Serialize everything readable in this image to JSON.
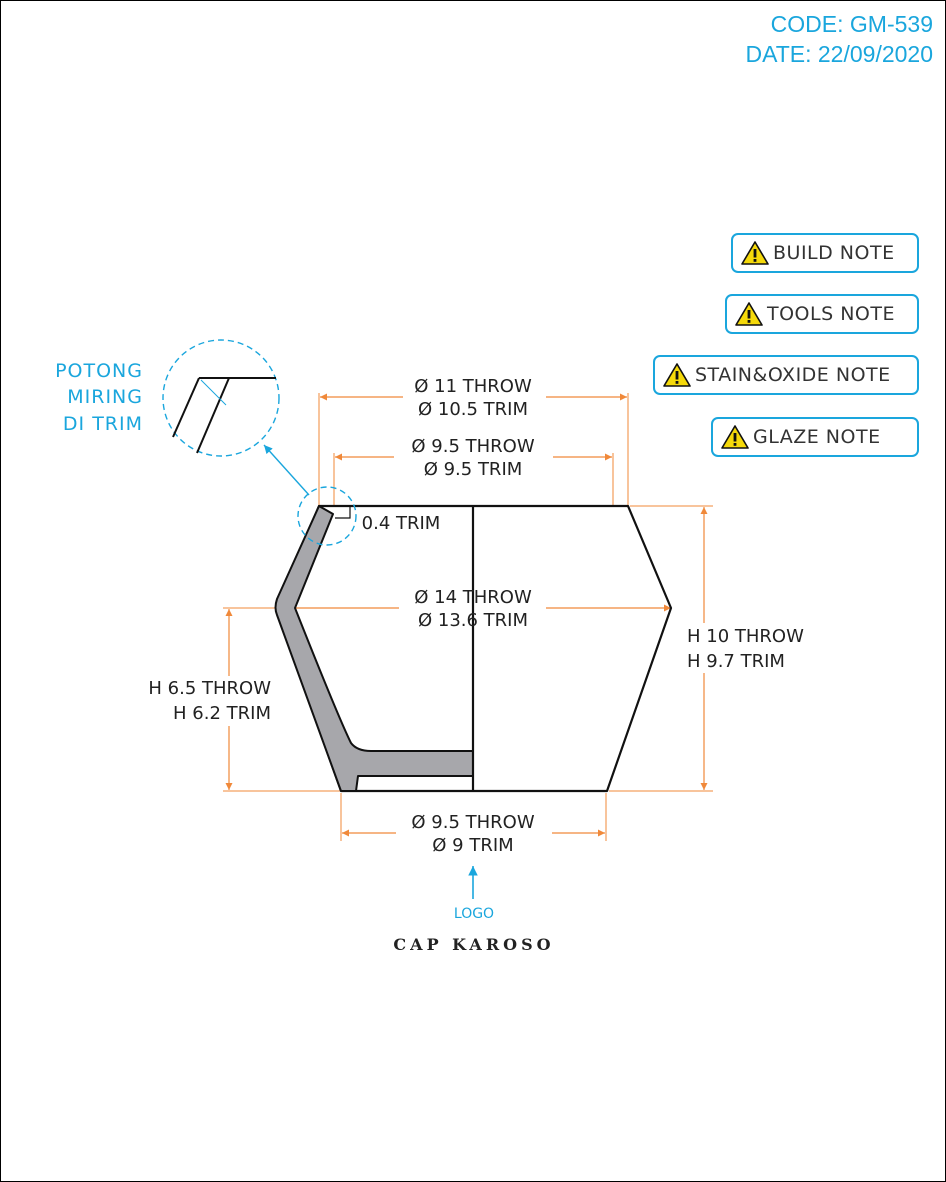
{
  "header": {
    "code": "CODE: GM-539",
    "date": "DATE: 22/09/2020"
  },
  "notes": {
    "build": "BUILD NOTE",
    "tools": "TOOLS NOTE",
    "stain": "STAIN&OXIDE NOTE",
    "glaze": "GLAZE NOTE"
  },
  "callout": {
    "line1": "POTONG",
    "line2": "MIRING",
    "line3": "DI TRIM"
  },
  "dims": {
    "top_outer_1": "Ø 11 THROW",
    "top_outer_2": "Ø 10.5 TRIM",
    "top_inner_1": "Ø 9.5 THROW",
    "top_inner_2": "Ø 9.5 TRIM",
    "rim_trim": "0.4 TRIM",
    "mid_1": "Ø 14 THROW",
    "mid_2": "Ø 13.6 TRIM",
    "height_1": "H 10 THROW",
    "height_2": "H 9.7 TRIM",
    "lower_h_1": "H 6.5 THROW",
    "lower_h_2": "H 6.2 TRIM",
    "base_1": "Ø 9.5 THROW",
    "base_2": "Ø 9 TRIM"
  },
  "logo_label": "LOGO",
  "title": "CAP KAROSO",
  "colors": {
    "accent": "#1aa6dd",
    "dimension": "#f0893a",
    "wall": "#a7a7ab",
    "warning": "#f5d90a"
  }
}
